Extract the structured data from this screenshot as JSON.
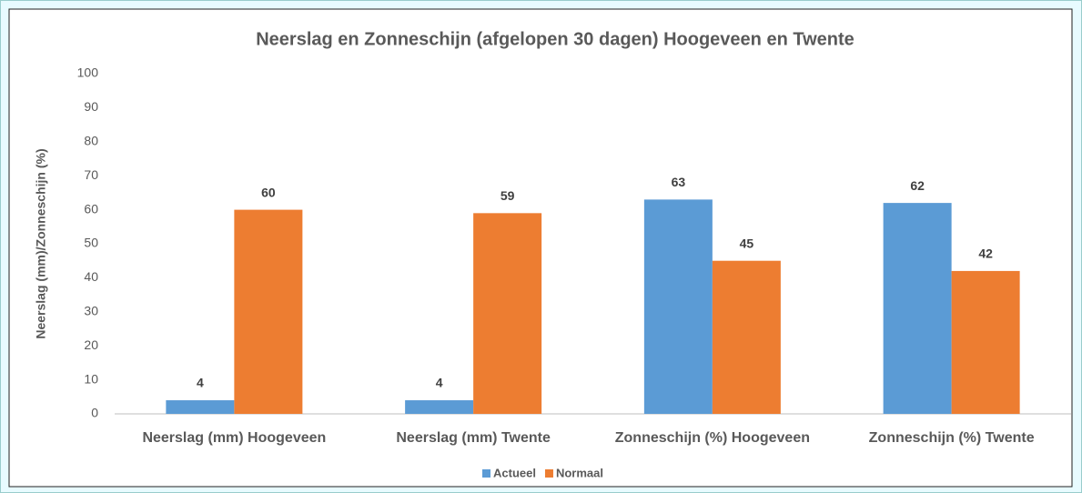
{
  "chart_data": {
    "type": "bar",
    "title": "Neerslag en Zonneschijn (afgelopen 30 dagen) Hoogeveen en Twente",
    "y_label": "Neerslag (mm)/Zonneschijn (%)",
    "categories": [
      "Neerslag (mm) Hoogeveen",
      "Neerslag (mm) Twente",
      "Zonneschijn  (%) Hoogeveen",
      "Zonneschijn (%) Twente"
    ],
    "series": [
      {
        "name": "Actueel",
        "color": "#5b9bd5",
        "values": [
          4,
          4,
          63,
          62
        ]
      },
      {
        "name": "Normaal",
        "color": "#ed7d31",
        "values": [
          60,
          59,
          45,
          42
        ]
      }
    ],
    "ylim": [
      0,
      100
    ],
    "yticks": [
      0,
      10,
      20,
      30,
      40,
      50,
      60,
      70,
      80,
      90,
      100
    ],
    "grid": false,
    "legend": "bottom"
  }
}
